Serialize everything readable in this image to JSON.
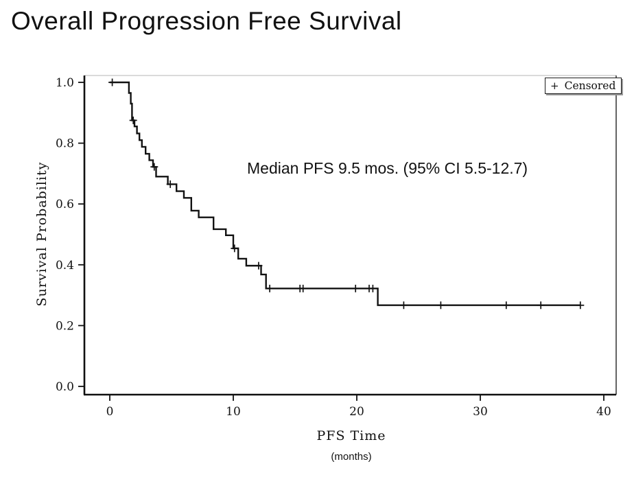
{
  "chart_data": {
    "type": "line",
    "subtype": "kaplan-meier-step",
    "title": "Overall Progression Free Survival",
    "xlabel": "PFS Time",
    "xlabel_units": "(months)",
    "ylabel": "Survival Probability",
    "annotation": "Median PFS 9.5 mos. (95% CI 5.5-12.7)",
    "median_pfs_months": 9.5,
    "ci95_months": [
      5.5,
      12.7
    ],
    "xlim": [
      0,
      40
    ],
    "ylim": [
      0.0,
      1.0
    ],
    "x_ticks": [
      0,
      10,
      20,
      30,
      40
    ],
    "y_ticks": [
      0.0,
      0.2,
      0.4,
      0.6,
      0.8,
      1.0
    ],
    "grid": false,
    "legend": {
      "marker": "+",
      "label": "Censored",
      "position": "top-right"
    },
    "line_color": "#121212",
    "series": [
      {
        "name": "PFS survival probability",
        "points": [
          [
            0,
            1.0
          ],
          [
            1.55,
            0.965
          ],
          [
            1.7,
            0.93
          ],
          [
            1.8,
            0.875
          ],
          [
            2.0,
            0.855
          ],
          [
            2.2,
            0.832
          ],
          [
            2.4,
            0.81
          ],
          [
            2.6,
            0.788
          ],
          [
            2.9,
            0.765
          ],
          [
            3.2,
            0.744
          ],
          [
            3.5,
            0.722
          ],
          [
            3.75,
            0.69
          ],
          [
            4.7,
            0.665
          ],
          [
            5.4,
            0.642
          ],
          [
            6.0,
            0.62
          ],
          [
            6.6,
            0.578
          ],
          [
            7.2,
            0.556
          ],
          [
            8.4,
            0.517
          ],
          [
            9.4,
            0.497
          ],
          [
            10.0,
            0.454
          ],
          [
            10.4,
            0.42
          ],
          [
            11.05,
            0.397
          ],
          [
            12.25,
            0.368
          ],
          [
            12.65,
            0.322
          ],
          [
            21.7,
            0.267
          ],
          [
            38.1,
            0.267
          ]
        ]
      }
    ],
    "censored_marks": [
      [
        0.2,
        1.0
      ],
      [
        1.9,
        0.875
      ],
      [
        3.6,
        0.722
      ],
      [
        4.9,
        0.665
      ],
      [
        10.1,
        0.454
      ],
      [
        12.05,
        0.397
      ],
      [
        12.95,
        0.322
      ],
      [
        15.4,
        0.322
      ],
      [
        15.65,
        0.322
      ],
      [
        19.9,
        0.322
      ],
      [
        21.0,
        0.322
      ],
      [
        21.3,
        0.322
      ],
      [
        23.8,
        0.267
      ],
      [
        26.8,
        0.267
      ],
      [
        32.1,
        0.267
      ],
      [
        34.9,
        0.267
      ],
      [
        38.1,
        0.267
      ]
    ]
  }
}
